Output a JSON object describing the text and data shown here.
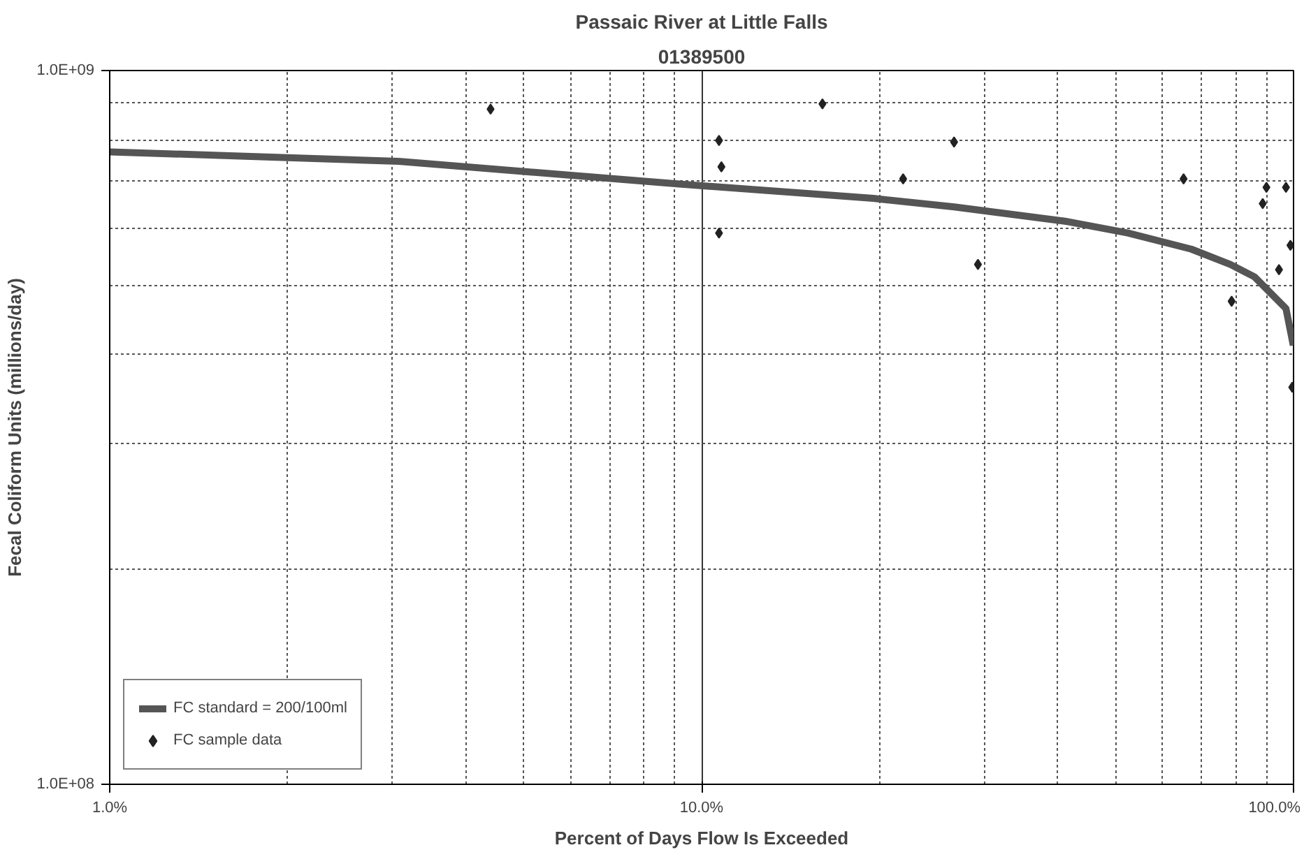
{
  "chart_data": {
    "type": "line",
    "title": "Passaic River at Little Falls",
    "subtitle": "01389500",
    "xlabel": "Percent of Days Flow Is Exceeded",
    "ylabel": "Fecal Coliform Units (millions/day)",
    "log": "xy",
    "grid": true,
    "legend": "bottom left",
    "xlim": [
      1,
      100
    ],
    "xticks": [
      {
        "value": 1,
        "label": "1.0%"
      },
      {
        "value": 10,
        "label": "10.0%"
      },
      {
        "value": 100,
        "label": "100.0%"
      }
    ],
    "ylim": [
      100000000,
      1000000000
    ],
    "yticks": [
      {
        "value": 100000000,
        "label": "1.0E+08"
      },
      {
        "value": 1000000000,
        "label": "1.0E+09"
      }
    ],
    "series": [
      {
        "name": "FC standard = 200/100ml",
        "color": "#555555",
        "x": [
          1,
          1.66,
          3.08,
          9.25,
          19.5,
          26.7,
          41.1,
          52.5,
          67.2,
          78.2,
          85.9,
          97.1,
          99.9
        ],
        "values": [
          769000000,
          759000000,
          746000000,
          693000000,
          662000000,
          644000000,
          615000000,
          592000000,
          562000000,
          535000000,
          514000000,
          464000000,
          412000000
        ]
      },
      {
        "name": "FC sample data",
        "type": "scatter",
        "marker": "diamond",
        "color": "#222222",
        "x": [
          4.4,
          16.0,
          10.7,
          10.8,
          10.7,
          26.7,
          21.9,
          29.3,
          65.2,
          90.0,
          97.1,
          88.7,
          98.8,
          94.5,
          78.6,
          99.5
        ],
        "values": [
          883000000,
          898000000,
          798000000,
          733000000,
          592000000,
          794000000,
          705000000,
          535000000,
          705000000,
          686000000,
          686000000,
          651000000,
          569000000,
          526000000,
          475000000,
          360000000
        ]
      }
    ]
  }
}
